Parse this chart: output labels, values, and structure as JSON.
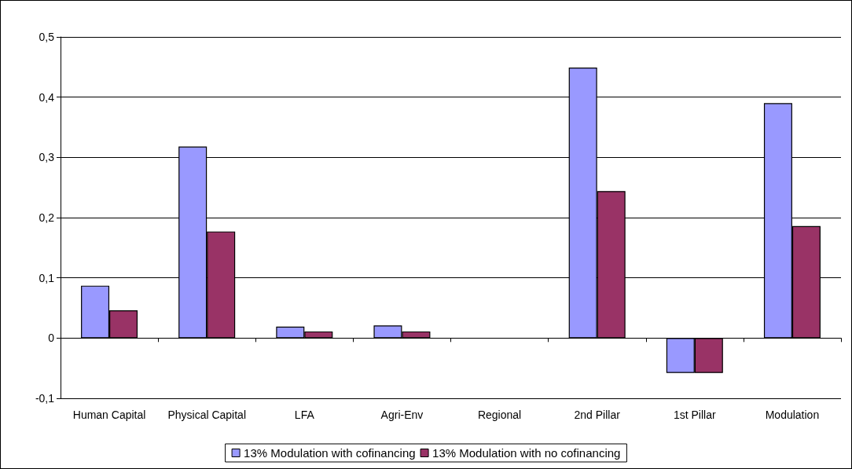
{
  "chart_data": {
    "type": "bar",
    "categories": [
      "Human Capital",
      "Physical Capital",
      "LFA",
      "Agri-Env",
      "Regional",
      "2nd Pillar",
      "1st Pillar",
      "Modulation"
    ],
    "series": [
      {
        "name": "13% Modulation with cofinancing",
        "color": "#9999ff",
        "values": [
          0.087,
          0.318,
          0.019,
          0.021,
          0,
          0.449,
          -0.058,
          0.39
        ]
      },
      {
        "name": "13% Modulation with no cofinancing",
        "color": "#993366",
        "values": [
          0.046,
          0.177,
          0.011,
          0.011,
          0,
          0.244,
          -0.058,
          0.186
        ]
      }
    ],
    "ylim": [
      -0.1,
      0.5
    ],
    "yticks": [
      {
        "value": -0.1,
        "label": "-0,1"
      },
      0,
      {
        "value": 0.1,
        "label": "0,1"
      },
      {
        "value": 0.2,
        "label": "0,2"
      },
      {
        "value": 0.3,
        "label": "0,3"
      },
      {
        "value": 0.4,
        "label": "0,4"
      },
      {
        "value": 0.5,
        "label": "0,5"
      }
    ],
    "grid": "y",
    "legend": "bottom"
  }
}
